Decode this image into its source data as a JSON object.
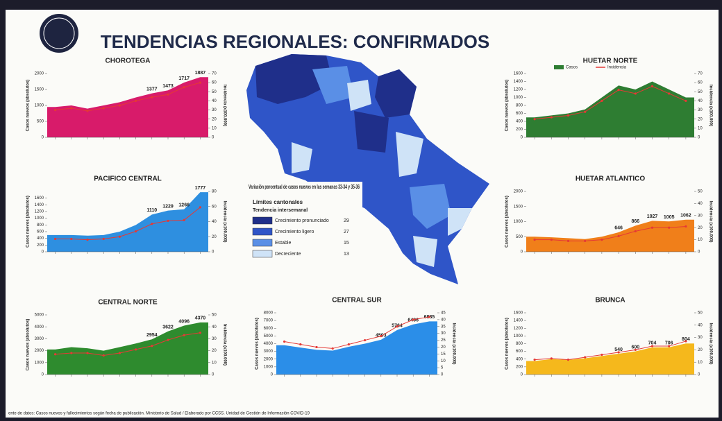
{
  "title": "TENDENCIAS REGIONALES: CONFIRMADOS",
  "footer": "ente de datos: Casos nuevos y fallecimientos según fecha de publicación. Ministerio de Salud / Elaborado por CCSS. Unidad de Gestión de Información COVID-19",
  "map": {
    "title": "Variación porcentual de casos nuevos en las semanas 33-34 y 35-36",
    "subtitle": "Límites cantonales",
    "legend_title": "Tendencia intersemanal",
    "items": [
      {
        "label": "Crecimiento pronunciado",
        "count": 29,
        "color": "#1f2f8a"
      },
      {
        "label": "Crecimiento ligero",
        "count": 27,
        "color": "#2f55c8"
      },
      {
        "label": "Estable",
        "count": 15,
        "color": "#5a8fe6"
      },
      {
        "label": "Decreciente",
        "count": 13,
        "color": "#cfe3f7"
      }
    ]
  },
  "chart_data": [
    {
      "type": "area",
      "title": "CHOROTEGA",
      "ylabel": "Casos nuevos (absolutos)",
      "y2label": "Incidencia (x100.000)",
      "ylim": [
        0,
        2000
      ],
      "yticks": [
        0,
        500,
        1000,
        1500,
        2000
      ],
      "y2lim": [
        0,
        70
      ],
      "y2ticks": [
        0,
        10,
        20,
        30,
        40,
        50,
        60,
        70
      ],
      "series": [
        {
          "name": "Casos",
          "color": "#d81b6a",
          "values": [
            950,
            1000,
            900,
            1000,
            1100,
            1250,
            1377,
            1473,
            1717,
            1887
          ],
          "value_labels": [
            null,
            null,
            null,
            null,
            null,
            null,
            "1377",
            "1473",
            "1717",
            "1887"
          ]
        },
        {
          "name": "Incidencia",
          "color": "#e53935",
          "axis": "y2",
          "values": [
            30,
            32,
            29,
            32,
            35,
            40,
            44,
            47,
            55,
            60
          ]
        }
      ]
    },
    {
      "type": "area",
      "title": "PACIFICO CENTRAL",
      "ylabel": "Casos nuevos (absolutos)",
      "y2label": "Incidencia (x100.000)",
      "ylim": [
        0,
        1800
      ],
      "yticks": [
        0,
        200,
        400,
        600,
        800,
        1000,
        1200,
        1400,
        1600
      ],
      "y2lim": [
        0,
        80
      ],
      "y2ticks": [
        0,
        20,
        40,
        60,
        80
      ],
      "series": [
        {
          "name": "Casos",
          "color": "#2e8fe0",
          "values": [
            500,
            500,
            480,
            500,
            600,
            800,
            1110,
            1229,
            1266,
            1777
          ],
          "value_labels": [
            null,
            null,
            null,
            null,
            null,
            null,
            "1110",
            "1229",
            "1266",
            "1777"
          ]
        },
        {
          "name": "Incidencia",
          "color": "#e53935",
          "axis": "y2",
          "values": [
            17,
            17,
            16,
            17,
            20,
            27,
            37,
            41,
            42,
            59
          ]
        }
      ]
    },
    {
      "type": "area",
      "title": "CENTRAL NORTE",
      "ylabel": "Casos nuevos (absolutos)",
      "y2label": "Incidencia (x100.000)",
      "ylim": [
        0,
        5000
      ],
      "yticks": [
        0,
        1000,
        2000,
        3000,
        4000,
        5000
      ],
      "y2lim": [
        0,
        50
      ],
      "y2ticks": [
        0,
        10,
        20,
        30,
        40,
        50
      ],
      "series": [
        {
          "name": "Casos",
          "color": "#2e8b2e",
          "values": [
            2100,
            2300,
            2200,
            2000,
            2300,
            2600,
            2954,
            3622,
            4096,
            4370
          ],
          "value_labels": [
            null,
            null,
            null,
            null,
            null,
            null,
            "2954",
            "3622",
            "4096",
            "4370"
          ]
        },
        {
          "name": "Incidencia",
          "color": "#e53935",
          "axis": "y2",
          "values": [
            17,
            18,
            18,
            16,
            18,
            21,
            24,
            29,
            33,
            35
          ]
        }
      ]
    },
    {
      "type": "area",
      "title": "CENTRAL SUR",
      "ylabel": "Casos nuevos (absolutos)",
      "y2label": "Incidencia (x100.000)",
      "ylim": [
        0,
        8000
      ],
      "yticks": [
        0,
        1000,
        2000,
        3000,
        4000,
        5000,
        6000,
        7000,
        8000
      ],
      "y2lim": [
        0,
        45
      ],
      "y2ticks": [
        0,
        5,
        10,
        15,
        20,
        25,
        30,
        35,
        40,
        45
      ],
      "series": [
        {
          "name": "Casos",
          "color": "#2b8ee8",
          "values": [
            3800,
            3500,
            3200,
            3100,
            3600,
            4000,
            4503,
            5764,
            6496,
            6885
          ],
          "value_labels": [
            null,
            null,
            null,
            null,
            null,
            null,
            "4503",
            "5764",
            "6496",
            "6885"
          ]
        },
        {
          "name": "Incidencia",
          "color": "#e53935",
          "axis": "y2",
          "values": [
            24,
            22,
            20,
            19,
            22,
            25,
            28,
            35,
            40,
            42
          ]
        }
      ]
    },
    {
      "type": "area",
      "title": "HUETAR NORTE",
      "legend": true,
      "ylabel": "Casos nuevos (absolutos)",
      "y2label": "Incidencia (x100.000)",
      "ylim": [
        0,
        1600
      ],
      "yticks": [
        0,
        200,
        400,
        600,
        800,
        1000,
        1200,
        1400,
        1600
      ],
      "y2lim": [
        0,
        70
      ],
      "y2ticks": [
        0,
        10,
        20,
        30,
        40,
        50,
        60,
        70
      ],
      "series": [
        {
          "name": "Casos",
          "color": "#2e7d32",
          "values": [
            500,
            550,
            600,
            700,
            1000,
            1300,
            1200,
            1400,
            1200,
            1000
          ]
        },
        {
          "name": "Incidencia",
          "color": "#e53935",
          "axis": "y2",
          "values": [
            20,
            22,
            24,
            28,
            40,
            52,
            48,
            56,
            48,
            40
          ]
        }
      ]
    },
    {
      "type": "area",
      "title": "HUETAR ATLANTICO",
      "ylabel": "Casos nuevos (absolutos)",
      "y2label": "Incidencia (x100.000)",
      "ylim": [
        0,
        2000
      ],
      "yticks": [
        0,
        500,
        1000,
        1500,
        2000
      ],
      "y2lim": [
        0,
        50
      ],
      "y2ticks": [
        0,
        10,
        20,
        30,
        40,
        50
      ],
      "series": [
        {
          "name": "Casos",
          "color": "#f07f1a",
          "values": [
            500,
            480,
            450,
            420,
            500,
            646,
            866,
            1027,
            1005,
            1062
          ],
          "value_labels": [
            null,
            null,
            null,
            null,
            null,
            "646",
            "866",
            "1027",
            "1005",
            "1062"
          ]
        },
        {
          "name": "Incidencia",
          "color": "#e53935",
          "axis": "y2",
          "values": [
            10,
            10,
            9,
            9,
            10,
            13,
            17,
            20,
            20,
            21
          ]
        }
      ]
    },
    {
      "type": "area",
      "title": "BRUNCA",
      "ylabel": "Casos nuevos (absolutos)",
      "y2label": "Incidencia (x100.000)",
      "ylim": [
        0,
        1600
      ],
      "yticks": [
        0,
        200,
        400,
        600,
        800,
        1000,
        1200,
        1400,
        1600
      ],
      "y2lim": [
        0,
        50
      ],
      "y2ticks": [
        0,
        10,
        20,
        30,
        40,
        50
      ],
      "series": [
        {
          "name": "Casos",
          "color": "#f5b81c",
          "values": [
            350,
            400,
            380,
            420,
            480,
            540,
            600,
            704,
            706,
            804
          ],
          "value_labels": [
            null,
            null,
            null,
            null,
            null,
            "540",
            "600",
            "704",
            "706",
            "804"
          ]
        },
        {
          "name": "Incidencia",
          "color": "#e53935",
          "axis": "y2",
          "values": [
            12,
            13,
            12,
            14,
            16,
            18,
            20,
            23,
            23,
            27
          ]
        }
      ]
    }
  ]
}
